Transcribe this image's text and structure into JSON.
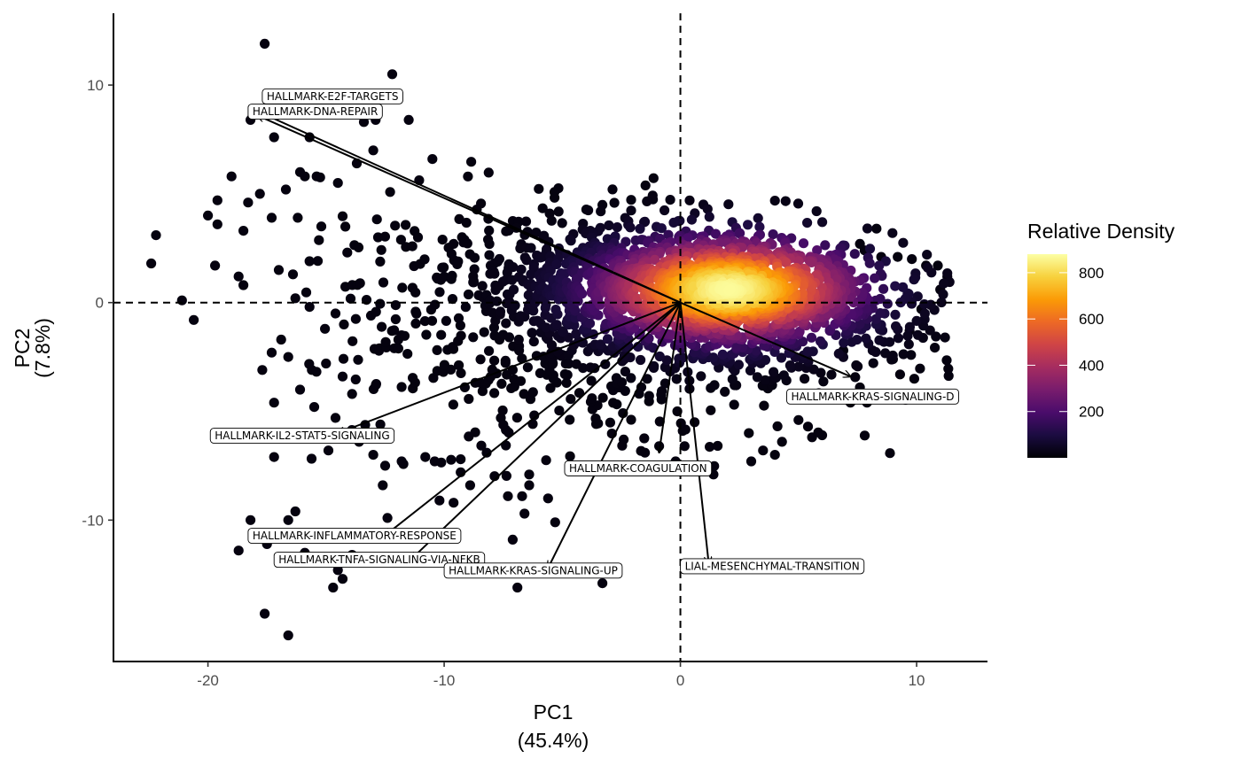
{
  "chart_data": {
    "type": "scatter",
    "title": "",
    "xlabel": "PC1",
    "xlabel_pct": "(45.4%)",
    "ylabel": "PC2",
    "ylabel_pct": "(7.8%)",
    "xlim": [
      -24,
      13
    ],
    "ylim": [
      -16.5,
      13.3
    ],
    "x_ticks": [
      -20,
      -10,
      0,
      10
    ],
    "x_tick_labels": [
      "-20",
      "-10",
      "0",
      "10"
    ],
    "y_ticks": [
      10,
      0,
      -10
    ],
    "y_tick_labels": [
      "10",
      "0",
      "-10"
    ],
    "reference_lines": {
      "x": 0,
      "y": 0,
      "style": "dashed"
    },
    "grid": false,
    "legend": {
      "title": "Relative Density",
      "placement": "right",
      "range": [
        0,
        880
      ],
      "ticks": [
        200,
        400,
        600,
        800
      ],
      "tick_labels": [
        "200",
        "400",
        "600",
        "800"
      ],
      "colormap": [
        "#000004",
        "#1b0c41",
        "#4a0c6b",
        "#781c6d",
        "#a52c60",
        "#cf4446",
        "#ed6925",
        "#fb9b06",
        "#f7d13d",
        "#fcffa4"
      ]
    },
    "density_cloud": {
      "n_points": 2400,
      "center": [
        2.0,
        0.6
      ],
      "note_color_by": "relative density"
    },
    "outlier_points": [
      [
        -17.6,
        11.9
      ],
      [
        -12.2,
        10.5
      ],
      [
        -11.5,
        8.4
      ],
      [
        -13.4,
        8.3
      ],
      [
        -12.9,
        8.4
      ],
      [
        -17.2,
        7.6
      ],
      [
        -15.7,
        7.6
      ],
      [
        -13.0,
        7.0
      ],
      [
        -10.5,
        6.6
      ],
      [
        -18.2,
        8.4
      ],
      [
        -19.0,
        5.8
      ],
      [
        -19.6,
        4.7
      ],
      [
        -18.3,
        4.6
      ],
      [
        -17.8,
        5.0
      ],
      [
        -16.7,
        5.2
      ],
      [
        -16.1,
        6.0
      ],
      [
        -15.9,
        5.8
      ],
      [
        -15.4,
        5.8
      ],
      [
        -14.5,
        5.5
      ],
      [
        -13.7,
        6.4
      ],
      [
        -20.0,
        4.0
      ],
      [
        -19.6,
        3.6
      ],
      [
        -18.5,
        3.3
      ],
      [
        -17.3,
        3.9
      ],
      [
        -16.2,
        3.9
      ],
      [
        -15.2,
        3.5
      ],
      [
        -22.2,
        3.1
      ],
      [
        -22.4,
        1.8
      ],
      [
        -19.7,
        1.7
      ],
      [
        -18.7,
        1.2
      ],
      [
        -17.0,
        1.5
      ],
      [
        -16.4,
        1.3
      ],
      [
        -15.7,
        1.9
      ],
      [
        -14.1,
        2.3
      ],
      [
        -21.1,
        0.1
      ],
      [
        -20.6,
        -0.8
      ],
      [
        -18.5,
        0.8
      ],
      [
        -16.3,
        0.2
      ],
      [
        -15.7,
        -0.2
      ],
      [
        -14.6,
        -0.5
      ],
      [
        -13.1,
        -0.6
      ],
      [
        -16.9,
        -1.7
      ],
      [
        -17.3,
        -2.3
      ],
      [
        -16.6,
        -2.5
      ],
      [
        -15.6,
        -3.1
      ],
      [
        -15.0,
        -2.8
      ],
      [
        -14.3,
        -3.4
      ],
      [
        -13.9,
        -4.2
      ],
      [
        -17.7,
        -3.1
      ],
      [
        -17.2,
        -4.6
      ],
      [
        -16.1,
        -4.0
      ],
      [
        -15.5,
        -4.8
      ],
      [
        -14.6,
        -5.3
      ],
      [
        -13.6,
        -6.4
      ],
      [
        -12.7,
        -5.6
      ],
      [
        -14.9,
        -6.8
      ],
      [
        -13.0,
        -7.0
      ],
      [
        -12.5,
        -7.5
      ],
      [
        -12.6,
        -8.4
      ],
      [
        -11.8,
        -7.3
      ],
      [
        -10.4,
        -7.3
      ],
      [
        -9.3,
        -7.8
      ],
      [
        -8.2,
        -6.9
      ],
      [
        -7.6,
        -5.3
      ],
      [
        -17.2,
        -7.1
      ],
      [
        -18.2,
        -10.0
      ],
      [
        -18.7,
        -11.4
      ],
      [
        -17.5,
        -11.1
      ],
      [
        -16.6,
        -10.0
      ],
      [
        -16.3,
        -9.6
      ],
      [
        -15.9,
        -11.5
      ],
      [
        -16.1,
        -11.9
      ],
      [
        -14.5,
        -12.3
      ],
      [
        -13.9,
        -11.6
      ],
      [
        -14.7,
        -13.1
      ],
      [
        -12.4,
        -9.9
      ],
      [
        -11.2,
        -10.6
      ],
      [
        -10.2,
        -9.1
      ],
      [
        -9.6,
        -9.2
      ],
      [
        -8.9,
        -8.4
      ],
      [
        -7.3,
        -8.9
      ],
      [
        -6.4,
        -8.4
      ],
      [
        -6.6,
        -9.7
      ],
      [
        -7.1,
        -10.9
      ],
      [
        -5.3,
        -10.1
      ],
      [
        -17.6,
        -14.3
      ],
      [
        -16.6,
        -15.3
      ],
      [
        -14.3,
        -12.7
      ],
      [
        -6.9,
        -13.1
      ],
      [
        -3.3,
        -12.9
      ],
      [
        -6.7,
        -8.9
      ],
      [
        -5.6,
        -9.0
      ],
      [
        -6.4,
        -7.9
      ],
      [
        -9.3,
        -7.2
      ],
      [
        -10.8,
        -7.1
      ],
      [
        1.4,
        -7.9
      ],
      [
        3.5,
        -6.8
      ],
      [
        3.0,
        -7.3
      ],
      [
        4.0,
        -7.0
      ],
      [
        2.9,
        -6.0
      ],
      [
        4.3,
        -6.4
      ],
      [
        5.0,
        -5.4
      ],
      [
        5.4,
        -5.7
      ],
      [
        6.0,
        -6.1
      ],
      [
        7.2,
        -4.6
      ],
      [
        7.6,
        -3.9
      ],
      [
        7.9,
        -4.6
      ],
      [
        6.9,
        -2.2
      ],
      [
        7.8,
        2.4
      ],
      [
        8.3,
        3.4
      ],
      [
        7.6,
        2.7
      ],
      [
        8.5,
        2.1
      ],
      [
        9.2,
        2.1
      ],
      [
        9.8,
        2.0
      ],
      [
        10.4,
        1.7
      ],
      [
        10.9,
        1.7
      ],
      [
        11.3,
        1.2
      ],
      [
        11.0,
        0.6
      ],
      [
        10.6,
        -0.1
      ],
      [
        10.2,
        -0.3
      ],
      [
        9.7,
        -1.3
      ],
      [
        9.9,
        -3.5
      ],
      [
        9.3,
        -3.3
      ],
      [
        9.0,
        -2.6
      ],
      [
        0.6,
        -5.5
      ],
      [
        -2.4,
        -6.3
      ],
      [
        -1.5,
        -6.9
      ],
      [
        -0.9,
        -6.6
      ],
      [
        0.1,
        -5.9
      ],
      [
        -0.2,
        -7.3
      ]
    ],
    "loading_arrows": [
      {
        "label": "HALLMARK-E2F-TARGETS",
        "x": -17.7,
        "y": 8.7,
        "label_x": -17.7,
        "label_y": 9.5
      },
      {
        "label": "HALLMARK-DNA-REPAIR",
        "x": -17.9,
        "y": 8.6,
        "label_x": -18.3,
        "label_y": 8.8
      },
      {
        "label": "HALLMARK-KRAS-SIGNALING-D",
        "x": 7.2,
        "y": -3.4,
        "label_x": 4.5,
        "label_y": -4.3
      },
      {
        "label": "HALLMARK-IL2-STAT5-SIGNALING",
        "x": -14.5,
        "y": -6.0,
        "label_x": -19.9,
        "label_y": -6.1
      },
      {
        "label": "HALLMARK-COAGULATION",
        "x": -0.9,
        "y": -6.9,
        "label_x": -4.9,
        "label_y": -7.6
      },
      {
        "label": "HALLMARK-INFLAMMATORY-RESPONSE",
        "x": -12.5,
        "y": -10.7,
        "label_x": -18.3,
        "label_y": -10.7
      },
      {
        "label": "HALLMARK-TNFA-SIGNALING-VIA-NFKB",
        "x": -11.4,
        "y": -11.8,
        "label_x": -17.2,
        "label_y": -11.8
      },
      {
        "label": "HALLMARK-KRAS-SIGNALING-UP",
        "x": -5.6,
        "y": -12.2,
        "label_x": -10.0,
        "label_y": -12.3
      },
      {
        "label": "LIAL-MESENCHYMAL-TRANSITION",
        "x": 1.2,
        "y": -12.0,
        "label_x": 0.0,
        "label_y": -12.1
      }
    ]
  }
}
